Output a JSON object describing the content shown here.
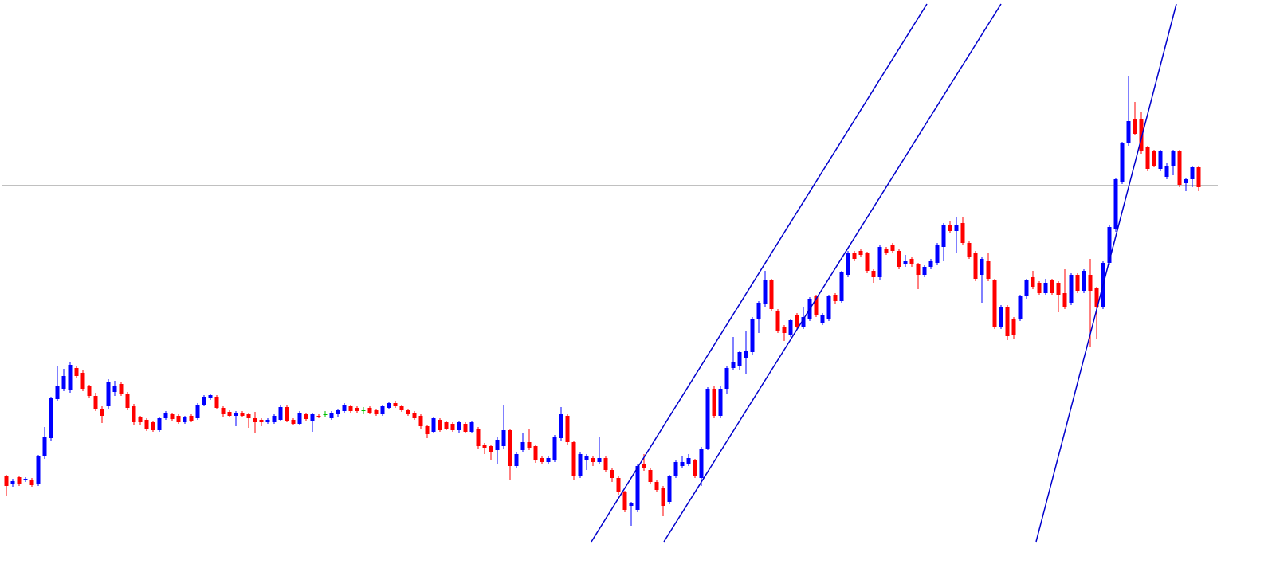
{
  "chart_data": {
    "type": "candlestick",
    "up_color": "#0000ff",
    "down_color": "#ff0000",
    "flat_color": "#00c000",
    "ylim": [
      0,
      681
    ],
    "xlim": [
      -0.625,
      190
    ],
    "ohlc": [
      [
        83,
        85,
        59,
        71
      ],
      [
        73,
        80,
        70,
        77
      ],
      [
        82,
        84,
        71,
        73
      ],
      [
        78,
        82,
        76,
        80
      ],
      [
        79,
        81,
        70,
        72
      ],
      [
        73,
        110,
        71,
        108
      ],
      [
        108,
        145,
        105,
        133
      ],
      [
        131,
        183,
        128,
        181
      ],
      [
        180,
        222,
        178,
        196
      ],
      [
        193,
        218,
        190,
        209
      ],
      [
        191,
        226,
        188,
        223
      ],
      [
        219,
        222,
        206,
        209
      ],
      [
        213,
        216,
        190,
        193
      ],
      [
        196,
        198,
        181,
        184
      ],
      [
        184,
        188,
        165,
        168
      ],
      [
        168,
        171,
        150,
        159
      ],
      [
        171,
        205,
        168,
        201
      ],
      [
        189,
        203,
        184,
        197
      ],
      [
        199,
        202,
        184,
        187
      ],
      [
        186,
        189,
        166,
        169
      ],
      [
        171,
        174,
        148,
        151
      ],
      [
        157,
        159,
        148,
        151
      ],
      [
        154,
        156,
        140,
        143
      ],
      [
        151,
        153,
        139,
        141
      ],
      [
        141,
        158,
        139,
        156
      ],
      [
        156,
        165,
        154,
        163
      ],
      [
        161,
        163,
        153,
        155
      ],
      [
        159,
        161,
        149,
        151
      ],
      [
        151,
        159,
        149,
        157
      ],
      [
        159,
        161,
        151,
        153
      ],
      [
        156,
        175,
        154,
        173
      ],
      [
        173,
        185,
        171,
        183
      ],
      [
        181,
        187,
        179,
        185
      ],
      [
        183,
        185,
        167,
        169
      ],
      [
        169,
        171,
        158,
        161
      ],
      [
        164,
        166,
        157,
        159
      ],
      [
        159,
        165,
        146,
        163
      ],
      [
        163,
        165,
        157,
        159
      ],
      [
        161,
        163,
        144,
        156
      ],
      [
        156,
        164,
        138,
        151
      ],
      [
        154,
        156,
        146,
        151
      ],
      [
        151,
        156,
        149,
        154
      ],
      [
        151,
        161,
        149,
        159
      ],
      [
        154,
        172,
        152,
        170
      ],
      [
        170,
        172,
        151,
        153
      ],
      [
        154,
        156,
        147,
        149
      ],
      [
        149,
        165,
        147,
        163
      ],
      [
        161,
        163,
        153,
        155
      ],
      [
        153,
        163,
        139,
        161
      ],
      [
        159,
        161,
        156,
        158
      ],
      [
        161,
        165,
        158,
        161
      ],
      [
        156,
        165,
        154,
        163
      ],
      [
        161,
        168,
        158,
        166
      ],
      [
        165,
        175,
        163,
        173
      ],
      [
        171,
        173,
        163,
        165
      ],
      [
        169,
        171,
        163,
        165
      ],
      [
        166,
        170,
        161,
        166
      ],
      [
        169,
        171,
        161,
        163
      ],
      [
        166,
        168,
        159,
        161
      ],
      [
        161,
        173,
        159,
        171
      ],
      [
        169,
        177,
        167,
        175
      ],
      [
        175,
        178,
        169,
        171
      ],
      [
        171,
        173,
        164,
        166
      ],
      [
        166,
        168,
        159,
        161
      ],
      [
        163,
        165,
        154,
        156
      ],
      [
        159,
        161,
        143,
        146
      ],
      [
        146,
        148,
        131,
        136
      ],
      [
        139,
        158,
        137,
        156
      ],
      [
        154,
        156,
        139,
        141
      ],
      [
        151,
        153,
        141,
        143
      ],
      [
        149,
        151,
        139,
        141
      ],
      [
        141,
        153,
        137,
        151
      ],
      [
        149,
        151,
        137,
        139
      ],
      [
        139,
        153,
        137,
        151
      ],
      [
        143,
        145,
        118,
        121
      ],
      [
        123,
        125,
        111,
        119
      ],
      [
        121,
        123,
        103,
        113
      ],
      [
        116,
        132,
        98,
        129
      ],
      [
        121,
        173,
        118,
        141
      ],
      [
        141,
        143,
        79,
        96
      ],
      [
        96,
        113,
        93,
        111
      ],
      [
        116,
        138,
        113,
        126
      ],
      [
        126,
        142,
        116,
        119
      ],
      [
        121,
        123,
        100,
        103
      ],
      [
        106,
        108,
        98,
        101
      ],
      [
        101,
        108,
        98,
        106
      ],
      [
        103,
        135,
        101,
        133
      ],
      [
        131,
        170,
        128,
        161
      ],
      [
        159,
        161,
        123,
        126
      ],
      [
        126,
        128,
        78,
        83
      ],
      [
        83,
        113,
        81,
        111
      ],
      [
        103,
        111,
        91,
        109
      ],
      [
        106,
        108,
        96,
        101
      ],
      [
        101,
        133,
        98,
        106
      ],
      [
        106,
        108,
        88,
        91
      ],
      [
        91,
        93,
        76,
        81
      ],
      [
        81,
        83,
        60,
        63
      ],
      [
        63,
        65,
        38,
        41
      ],
      [
        46,
        51,
        21,
        49
      ],
      [
        41,
        98,
        38,
        96
      ],
      [
        99,
        111,
        90,
        93
      ],
      [
        91,
        93,
        73,
        76
      ],
      [
        76,
        78,
        63,
        66
      ],
      [
        69,
        71,
        33,
        46
      ],
      [
        51,
        85,
        48,
        83
      ],
      [
        83,
        103,
        81,
        101
      ],
      [
        96,
        108,
        93,
        101
      ],
      [
        99,
        111,
        96,
        106
      ],
      [
        103,
        105,
        81,
        83
      ],
      [
        81,
        120,
        71,
        118
      ],
      [
        118,
        195,
        116,
        193
      ],
      [
        193,
        196,
        156,
        159
      ],
      [
        159,
        196,
        156,
        193
      ],
      [
        193,
        221,
        186,
        219
      ],
      [
        219,
        258,
        216,
        226
      ],
      [
        221,
        241,
        216,
        239
      ],
      [
        231,
        266,
        211,
        241
      ],
      [
        239,
        283,
        236,
        281
      ],
      [
        281,
        303,
        263,
        301
      ],
      [
        299,
        341,
        296,
        329
      ],
      [
        329,
        331,
        290,
        293
      ],
      [
        291,
        293,
        263,
        266
      ],
      [
        271,
        273,
        253,
        263
      ],
      [
        261,
        281,
        258,
        279
      ],
      [
        286,
        288,
        268,
        271
      ],
      [
        271,
        296,
        268,
        283
      ],
      [
        281,
        308,
        278,
        306
      ],
      [
        309,
        311,
        283,
        286
      ],
      [
        276,
        288,
        273,
        286
      ],
      [
        281,
        311,
        278,
        309
      ],
      [
        311,
        313,
        300,
        303
      ],
      [
        303,
        341,
        301,
        339
      ],
      [
        336,
        366,
        333,
        363
      ],
      [
        363,
        366,
        353,
        356
      ],
      [
        366,
        369,
        358,
        361
      ],
      [
        363,
        365,
        338,
        341
      ],
      [
        341,
        343,
        326,
        333
      ],
      [
        333,
        373,
        330,
        371
      ],
      [
        369,
        371,
        361,
        363
      ],
      [
        373,
        376,
        363,
        366
      ],
      [
        366,
        368,
        343,
        346
      ],
      [
        349,
        361,
        346,
        353
      ],
      [
        356,
        358,
        346,
        349
      ],
      [
        349,
        351,
        318,
        336
      ],
      [
        336,
        348,
        333,
        346
      ],
      [
        346,
        356,
        343,
        353
      ],
      [
        351,
        376,
        348,
        373
      ],
      [
        371,
        401,
        353,
        399
      ],
      [
        399,
        403,
        388,
        391
      ],
      [
        391,
        408,
        363,
        399
      ],
      [
        401,
        408,
        373,
        376
      ],
      [
        376,
        378,
        356,
        359
      ],
      [
        363,
        366,
        328,
        331
      ],
      [
        336,
        358,
        301,
        356
      ],
      [
        353,
        363,
        328,
        331
      ],
      [
        329,
        331,
        268,
        271
      ],
      [
        271,
        298,
        268,
        296
      ],
      [
        296,
        298,
        254,
        259
      ],
      [
        281,
        283,
        256,
        261
      ],
      [
        281,
        311,
        278,
        309
      ],
      [
        309,
        331,
        306,
        329
      ],
      [
        333,
        341,
        318,
        321
      ],
      [
        326,
        328,
        311,
        313
      ],
      [
        313,
        331,
        311,
        326
      ],
      [
        329,
        331,
        311,
        313
      ],
      [
        326,
        328,
        289,
        311
      ],
      [
        313,
        343,
        293,
        296
      ],
      [
        301,
        338,
        298,
        336
      ],
      [
        336,
        338,
        313,
        316
      ],
      [
        316,
        343,
        313,
        341
      ],
      [
        336,
        356,
        246,
        316
      ],
      [
        319,
        321,
        256,
        296
      ],
      [
        296,
        353,
        293,
        351
      ],
      [
        351,
        398,
        348,
        396
      ],
      [
        393,
        458,
        390,
        456
      ],
      [
        453,
        503,
        450,
        501
      ],
      [
        501,
        586,
        498,
        529
      ],
      [
        531,
        553,
        511,
        513
      ],
      [
        531,
        541,
        488,
        491
      ],
      [
        496,
        498,
        466,
        469
      ],
      [
        491,
        493,
        471,
        473
      ],
      [
        469,
        493,
        466,
        491
      ],
      [
        459,
        476,
        456,
        473
      ],
      [
        473,
        493,
        461,
        491
      ],
      [
        491,
        493,
        446,
        449
      ],
      [
        451,
        458,
        441,
        456
      ],
      [
        456,
        473,
        446,
        471
      ],
      [
        471,
        473,
        441,
        446
      ]
    ],
    "hline": {
      "value": 448,
      "color": "#808080"
    },
    "trendlines": {
      "color": "#0000cc",
      "lines": [
        {
          "x": [
            91.75,
            144.375
          ],
          "y": [
            1,
            676
          ]
        },
        {
          "x": [
            103.125,
            156
          ],
          "y": [
            1,
            676
          ]
        },
        {
          "x": [
            161.5,
            183.5
          ],
          "y": [
            1,
            676
          ]
        }
      ]
    }
  }
}
